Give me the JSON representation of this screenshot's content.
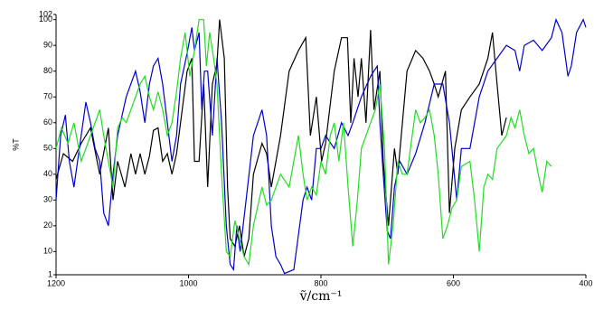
{
  "chart_data": {
    "type": "line",
    "x_label": "ṽ/cm⁻¹",
    "y_label": "%T",
    "xlim": [
      1200,
      400
    ],
    "ylim": [
      1,
      102
    ],
    "xticks": [
      1200,
      1000,
      800,
      600,
      400
    ],
    "yticks": [
      1,
      10,
      20,
      30,
      40,
      50,
      60,
      70,
      80,
      90,
      100,
      102
    ],
    "series": [
      {
        "color": "#000000",
        "x": [
          1200,
          1189,
          1175,
          1162,
          1148,
          1134,
          1121,
          1114,
          1107,
          1096,
          1087,
          1080,
          1073,
          1066,
          1059,
          1053,
          1046,
          1039,
          1032,
          1025,
          1018,
          1012,
          1002,
          995,
          991,
          984,
          977,
          971,
          964,
          957,
          953,
          946,
          941,
          937,
          930,
          923,
          916,
          909,
          902,
          889,
          882,
          875,
          868,
          861,
          848,
          834,
          823,
          816,
          807,
          799,
          793,
          780,
          769,
          760,
          755,
          750,
          744,
          739,
          732,
          725,
          720,
          711,
          706,
          698,
          689,
          684,
          677,
          670,
          657,
          646,
          636,
          629,
          623,
          612,
          606,
          598,
          588,
          575,
          561,
          548,
          541,
          534,
          527,
          520
        ],
        "values": [
          38,
          48,
          45,
          52,
          58,
          40,
          58,
          30,
          45,
          35,
          48,
          40,
          48,
          40,
          47,
          57,
          58,
          45,
          48,
          40,
          48,
          60,
          80,
          85,
          45,
          45,
          75,
          35,
          75,
          83,
          100,
          85,
          35,
          15,
          12,
          20,
          8,
          15,
          40,
          52,
          48,
          35,
          45,
          55,
          80,
          88,
          93,
          55,
          70,
          45,
          52,
          80,
          93,
          93,
          60,
          85,
          70,
          85,
          60,
          96,
          65,
          80,
          45,
          20,
          50,
          40,
          60,
          80,
          88,
          85,
          80,
          75,
          70,
          80,
          25,
          50,
          65,
          70,
          75,
          85,
          95,
          75,
          55,
          62
        ]
      },
      {
        "color": "#0000cc",
        "x": [
          1200,
          1193,
          1186,
          1180,
          1173,
          1162,
          1155,
          1148,
          1141,
          1134,
          1128,
          1121,
          1114,
          1107,
          1094,
          1080,
          1073,
          1066,
          1059,
          1053,
          1046,
          1039,
          1032,
          1025,
          1018,
          1012,
          1002,
          995,
          991,
          984,
          980,
          976,
          971,
          964,
          957,
          950,
          943,
          937,
          932,
          927,
          922,
          913,
          902,
          889,
          882,
          875,
          868,
          861,
          855,
          841,
          827,
          821,
          814,
          807,
          800,
          793,
          780,
          769,
          759,
          752,
          739,
          725,
          715,
          711,
          706,
          700,
          695,
          689,
          681,
          670,
          657,
          643,
          629,
          616,
          606,
          595,
          588,
          575,
          561,
          548,
          534,
          520,
          507,
          500,
          493,
          479,
          466,
          452,
          445,
          436,
          427,
          422,
          414,
          404,
          400
        ],
        "values": [
          30,
          55,
          63,
          45,
          35,
          55,
          68,
          60,
          50,
          45,
          25,
          20,
          40,
          55,
          70,
          80,
          72,
          60,
          75,
          82,
          85,
          75,
          60,
          45,
          55,
          75,
          87,
          97,
          88,
          95,
          65,
          80,
          80,
          55,
          85,
          60,
          20,
          5,
          3,
          20,
          10,
          30,
          55,
          65,
          55,
          20,
          8,
          5,
          1.5,
          3,
          30,
          35,
          30,
          50,
          50,
          55,
          50,
          60,
          55,
          60,
          70,
          78,
          82,
          60,
          40,
          18,
          15,
          35,
          45,
          40,
          48,
          60,
          75,
          75,
          60,
          30,
          50,
          50,
          70,
          80,
          85,
          90,
          88,
          80,
          90,
          92,
          88,
          93,
          100,
          95,
          78,
          82,
          95,
          100,
          97
        ]
      },
      {
        "color": "#22dd22",
        "x": [
          1200,
          1192,
          1182,
          1173,
          1162,
          1155,
          1148,
          1134,
          1128,
          1121,
          1114,
          1107,
          1100,
          1094,
          1080,
          1073,
          1066,
          1059,
          1053,
          1046,
          1039,
          1032,
          1025,
          1018,
          1012,
          1005,
          998,
          991,
          984,
          977,
          973,
          968,
          962,
          957,
          950,
          943,
          937,
          930,
          923,
          916,
          909,
          902,
          889,
          882,
          875,
          861,
          848,
          834,
          827,
          821,
          814,
          807,
          800,
          793,
          786,
          780,
          773,
          766,
          759,
          752,
          745,
          739,
          725,
          718,
          711,
          704,
          698,
          691,
          684,
          677,
          670,
          657,
          650,
          643,
          636,
          629,
          623,
          616,
          609,
          602,
          595,
          588,
          575,
          568,
          561,
          554,
          548,
          541,
          534,
          520,
          513,
          507,
          500,
          493,
          486,
          479,
          472,
          466,
          459,
          452
        ],
        "values": [
          50,
          58,
          52,
          60,
          45,
          50,
          55,
          65,
          55,
          45,
          35,
          58,
          62,
          60,
          70,
          75,
          78,
          70,
          65,
          72,
          65,
          55,
          60,
          72,
          85,
          95,
          78,
          88,
          100,
          100,
          82,
          95,
          85,
          75,
          40,
          10,
          8,
          22,
          15,
          8,
          5,
          20,
          35,
          28,
          30,
          40,
          35,
          55,
          40,
          30,
          35,
          32,
          45,
          40,
          55,
          60,
          45,
          60,
          35,
          12,
          30,
          50,
          60,
          65,
          75,
          50,
          5,
          20,
          45,
          40,
          40,
          65,
          60,
          62,
          65,
          55,
          40,
          15,
          20,
          27,
          30,
          43,
          45,
          30,
          10,
          35,
          40,
          38,
          50,
          55,
          62,
          58,
          65,
          55,
          48,
          50,
          40,
          33,
          45,
          43
        ]
      }
    ]
  }
}
